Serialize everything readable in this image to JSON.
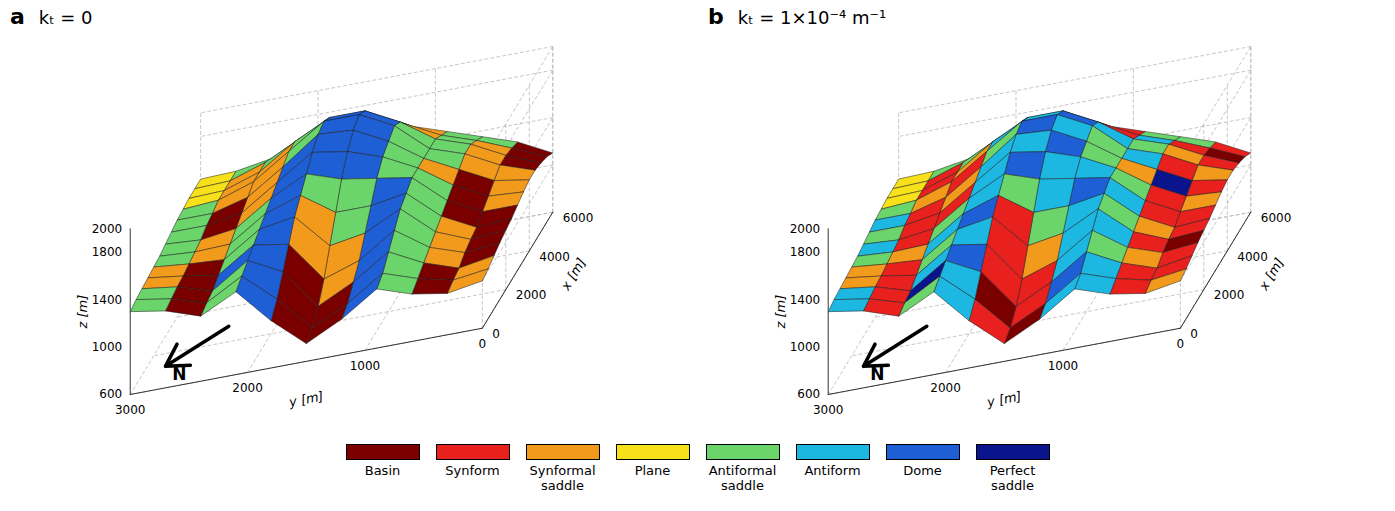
{
  "chart_data": [
    {
      "type": "surface",
      "title": "kₜ = 0",
      "annotations": [
        "a",
        "N"
      ],
      "xlabel": "x [m]",
      "ylabel": "y [m]",
      "zlabel": "z [m]",
      "xlim": [
        0,
        6000
      ],
      "xticks": [
        0,
        2000,
        4000,
        6000
      ],
      "ylim": [
        0,
        3000
      ],
      "yticks": [
        0,
        1000,
        2000,
        3000
      ],
      "zlim": [
        600,
        2000
      ],
      "zticks": [
        600,
        1000,
        1400,
        1800,
        2000
      ],
      "grid": true,
      "legend": "bottom",
      "categories": [
        "Basin",
        "Synform",
        "Synformal saddle",
        "Plane",
        "Antiformal saddle",
        "Antiform",
        "Dome",
        "Perfect saddle"
      ],
      "colors": [
        "#7a0000",
        "#e8201e",
        "#f29a1c",
        "#f7e11b",
        "#6bd46b",
        "#1cb8e2",
        "#1f5fd6",
        "#0a148c"
      ],
      "x": [
        0,
        500,
        1000,
        1500,
        2000,
        2500,
        3000,
        3500,
        4000,
        4500,
        5000,
        5500,
        6000
      ],
      "y": [
        0,
        300,
        600,
        900,
        1200,
        1500,
        1800,
        2100,
        2400,
        2700,
        3000
      ],
      "z": [
        [
          1000,
          950,
          1000,
          1100,
          900,
          750,
          1000,
          1300,
          1150,
          1250,
          1300
        ],
        [
          1020,
          980,
          1050,
          1150,
          950,
          800,
          1100,
          1350,
          1180,
          1270,
          1320
        ],
        [
          1050,
          1000,
          1100,
          1250,
          1050,
          900,
          1250,
          1400,
          1200,
          1290,
          1330
        ],
        [
          1080,
          1050,
          1150,
          1350,
          1150,
          1050,
          1400,
          1450,
          1250,
          1300,
          1340
        ],
        [
          1100,
          1080,
          1200,
          1450,
          1300,
          1250,
          1550,
          1500,
          1300,
          1320,
          1350
        ],
        [
          1120,
          1100,
          1250,
          1500,
          1450,
          1450,
          1650,
          1550,
          1350,
          1340,
          1360
        ],
        [
          1150,
          1150,
          1300,
          1550,
          1600,
          1650,
          1750,
          1600,
          1400,
          1360,
          1380
        ],
        [
          1180,
          1200,
          1350,
          1550,
          1700,
          1800,
          1850,
          1650,
          1450,
          1400,
          1400
        ],
        [
          1200,
          1250,
          1400,
          1550,
          1750,
          1900,
          1920,
          1700,
          1500,
          1420,
          1420
        ],
        [
          1200,
          1300,
          1450,
          1550,
          1800,
          1950,
          1950,
          1750,
          1550,
          1450,
          1430
        ],
        [
          1180,
          1300,
          1450,
          1550,
          1750,
          1900,
          1900,
          1750,
          1550,
          1450,
          1440
        ],
        [
          1150,
          1280,
          1400,
          1500,
          1650,
          1800,
          1800,
          1700,
          1550,
          1450,
          1440
        ],
        [
          1100,
          1250,
          1350,
          1450,
          1550,
          1700,
          1700,
          1650,
          1500,
          1450,
          1440
        ]
      ],
      "cells": [
        [
          2,
          0,
          4,
          6,
          0,
          0,
          6,
          4,
          0,
          4
        ],
        [
          2,
          0,
          4,
          6,
          0,
          0,
          6,
          4,
          0,
          4
        ],
        [
          0,
          2,
          4,
          6,
          2,
          0,
          6,
          6,
          0,
          2
        ],
        [
          0,
          2,
          4,
          6,
          2,
          2,
          6,
          4,
          0,
          2
        ],
        [
          0,
          2,
          4,
          6,
          4,
          2,
          6,
          4,
          2,
          4
        ],
        [
          0,
          0,
          4,
          6,
          4,
          4,
          6,
          4,
          2,
          4
        ],
        [
          2,
          0,
          4,
          4,
          6,
          6,
          6,
          2,
          0,
          4
        ],
        [
          2,
          0,
          2,
          4,
          6,
          6,
          6,
          2,
          0,
          4
        ],
        [
          2,
          2,
          4,
          4,
          6,
          6,
          4,
          2,
          2,
          4
        ],
        [
          0,
          2,
          4,
          4,
          6,
          6,
          4,
          2,
          2,
          3
        ],
        [
          0,
          2,
          4,
          2,
          4,
          6,
          6,
          4,
          2,
          3
        ],
        [
          0,
          4,
          4,
          2,
          4,
          6,
          6,
          4,
          4,
          3
        ]
      ]
    },
    {
      "type": "surface",
      "title": "kₜ = 1×10⁻⁴ m⁻¹",
      "annotations": [
        "b",
        "N"
      ],
      "xlabel": "x [m]",
      "ylabel": "y [m]",
      "zlabel": "z [m]",
      "xlim": [
        0,
        6000
      ],
      "xticks": [
        0,
        2000,
        4000,
        6000
      ],
      "ylim": [
        0,
        3000
      ],
      "yticks": [
        0,
        1000,
        2000,
        3000
      ],
      "zlim": [
        600,
        2000
      ],
      "zticks": [
        600,
        1000,
        1400,
        1800,
        2000
      ],
      "grid": true,
      "categories": [
        "Basin",
        "Synform",
        "Synformal saddle",
        "Plane",
        "Antiformal saddle",
        "Antiform",
        "Dome",
        "Perfect saddle"
      ],
      "colors": [
        "#7a0000",
        "#e8201e",
        "#f29a1c",
        "#f7e11b",
        "#6bd46b",
        "#1cb8e2",
        "#1f5fd6",
        "#0a148c"
      ],
      "x": [
        0,
        500,
        1000,
        1500,
        2000,
        2500,
        3000,
        3500,
        4000,
        4500,
        5000,
        5500,
        6000
      ],
      "y": [
        0,
        300,
        600,
        900,
        1200,
        1500,
        1800,
        2100,
        2400,
        2700,
        3000
      ],
      "z": [
        [
          1000,
          950,
          1000,
          1100,
          900,
          750,
          1000,
          1300,
          1150,
          1250,
          1300
        ],
        [
          1020,
          980,
          1050,
          1150,
          950,
          800,
          1100,
          1350,
          1180,
          1270,
          1320
        ],
        [
          1050,
          1000,
          1100,
          1250,
          1050,
          900,
          1250,
          1400,
          1200,
          1290,
          1330
        ],
        [
          1080,
          1050,
          1150,
          1350,
          1150,
          1050,
          1400,
          1450,
          1250,
          1300,
          1340
        ],
        [
          1100,
          1080,
          1200,
          1450,
          1300,
          1250,
          1550,
          1500,
          1300,
          1320,
          1350
        ],
        [
          1120,
          1100,
          1250,
          1500,
          1450,
          1450,
          1650,
          1550,
          1350,
          1340,
          1360
        ],
        [
          1150,
          1150,
          1300,
          1550,
          1600,
          1650,
          1750,
          1600,
          1400,
          1360,
          1380
        ],
        [
          1180,
          1200,
          1350,
          1550,
          1700,
          1800,
          1850,
          1650,
          1450,
          1400,
          1400
        ],
        [
          1200,
          1250,
          1400,
          1550,
          1750,
          1900,
          1920,
          1700,
          1500,
          1420,
          1420
        ],
        [
          1200,
          1300,
          1450,
          1550,
          1800,
          1950,
          1950,
          1750,
          1550,
          1450,
          1430
        ],
        [
          1180,
          1300,
          1450,
          1550,
          1750,
          1900,
          1900,
          1750,
          1550,
          1450,
          1440
        ],
        [
          1150,
          1280,
          1400,
          1500,
          1650,
          1800,
          1800,
          1700,
          1550,
          1450,
          1440
        ],
        [
          1100,
          1250,
          1350,
          1450,
          1550,
          1700,
          1700,
          1650,
          1500,
          1450,
          1440
        ]
      ],
      "cells": [
        [
          2,
          1,
          5,
          5,
          0,
          1,
          5,
          4,
          1,
          5
        ],
        [
          1,
          1,
          5,
          6,
          1,
          0,
          5,
          7,
          1,
          5
        ],
        [
          1,
          2,
          4,
          5,
          1,
          1,
          6,
          5,
          1,
          2
        ],
        [
          0,
          1,
          5,
          5,
          2,
          1,
          5,
          4,
          1,
          2
        ],
        [
          1,
          2,
          4,
          5,
          4,
          1,
          6,
          5,
          2,
          4
        ],
        [
          1,
          1,
          5,
          6,
          5,
          4,
          5,
          4,
          1,
          5
        ],
        [
          2,
          1,
          4,
          5,
          5,
          6,
          5,
          1,
          1,
          4
        ],
        [
          1,
          7,
          2,
          4,
          6,
          5,
          5,
          2,
          1,
          5
        ],
        [
          2,
          1,
          5,
          4,
          5,
          6,
          4,
          1,
          2,
          4
        ],
        [
          1,
          2,
          4,
          5,
          6,
          5,
          5,
          2,
          1,
          3
        ],
        [
          0,
          1,
          5,
          1,
          4,
          5,
          6,
          4,
          1,
          3
        ],
        [
          1,
          4,
          4,
          1,
          4,
          5,
          5,
          5,
          4,
          3
        ]
      ]
    }
  ]
}
